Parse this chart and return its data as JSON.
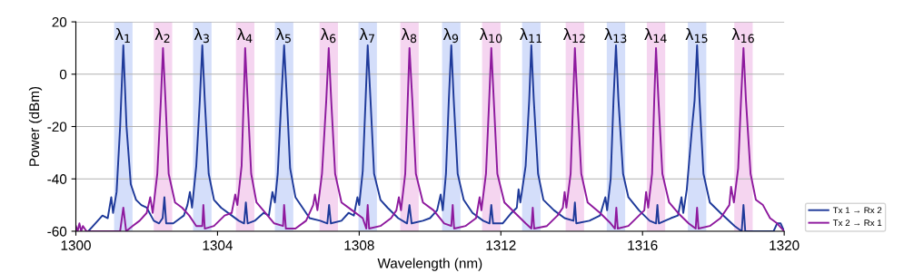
{
  "chart_data": {
    "type": "line",
    "xlabel": "Wavelength (nm)",
    "ylabel": "Power (dBm)",
    "xlim": [
      1300,
      1320
    ],
    "xticks": [
      1300,
      1304,
      1308,
      1312,
      1316,
      1320
    ],
    "ylim": [
      -60,
      20
    ],
    "yticks": [
      -60,
      -40,
      -20,
      0,
      20
    ],
    "grid": "y",
    "legend": "bottom right",
    "marker": "none",
    "line_style": "solid",
    "series": [
      {
        "name": "Tx 1 → Rx 2",
        "color": "#1f3a9a",
        "x": [
          1300.35,
          1300.55,
          1300.75,
          1300.9,
          1301.0,
          1301.05,
          1301.15,
          1301.25,
          1301.34,
          1301.43,
          1301.55,
          1301.7,
          1301.85,
          1302.0,
          1302.2,
          1302.35,
          1302.45,
          1302.5,
          1302.55,
          1302.75,
          1302.95,
          1303.05,
          1303.15,
          1303.22,
          1303.28,
          1303.4,
          1303.5,
          1303.57,
          1303.64,
          1303.75,
          1303.9,
          1304.1,
          1304.4,
          1304.6,
          1304.75,
          1304.8,
          1304.85,
          1305.05,
          1305.3,
          1305.45,
          1305.55,
          1305.62,
          1305.7,
          1305.8,
          1305.88,
          1305.96,
          1306.05,
          1306.2,
          1306.4,
          1306.6,
          1306.9,
          1307.1,
          1307.15,
          1307.2,
          1307.5,
          1307.7,
          1307.85,
          1307.95,
          1308.0,
          1308.1,
          1308.18,
          1308.24,
          1308.32,
          1308.42,
          1308.6,
          1308.8,
          1309.1,
          1309.35,
          1309.42,
          1309.48,
          1309.8,
          1310.0,
          1310.2,
          1310.3,
          1310.36,
          1310.45,
          1310.53,
          1310.6,
          1310.67,
          1310.78,
          1310.95,
          1311.2,
          1311.5,
          1311.68,
          1311.73,
          1311.78,
          1312.05,
          1312.3,
          1312.45,
          1312.5,
          1312.55,
          1312.7,
          1312.8,
          1312.86,
          1312.93,
          1313.05,
          1313.2,
          1313.5,
          1313.8,
          1314.05,
          1314.09,
          1314.13,
          1314.5,
          1314.8,
          1314.95,
          1315.0,
          1315.1,
          1315.18,
          1315.25,
          1315.32,
          1315.45,
          1315.6,
          1315.9,
          1316.2,
          1316.38,
          1316.42,
          1316.46,
          1316.8,
          1317.0,
          1317.1,
          1317.15,
          1317.25,
          1317.4,
          1317.47,
          1317.54,
          1317.61,
          1317.72,
          1317.9,
          1318.2,
          1318.6,
          1318.8,
          1318.85,
          1318.9,
          1319.7,
          1319.8,
          1319.9,
          1320.0
        ],
        "values": [
          -60,
          -57,
          -54,
          -55,
          -47,
          -53,
          -45,
          -20,
          11,
          -20,
          -42,
          -48,
          -50,
          -51,
          -56,
          -57,
          -55,
          -47,
          -57,
          -57,
          -55,
          -54,
          -50,
          -45,
          -51,
          -35,
          -10,
          11,
          -10,
          -38,
          -48,
          -51,
          -54,
          -56,
          -57,
          -49,
          -57,
          -56,
          -53,
          -54,
          -45,
          -49,
          -38,
          -10,
          11,
          -10,
          -36,
          -47,
          -51,
          -55,
          -56,
          -57,
          -50,
          -57,
          -56,
          -53,
          -54,
          -47,
          -50,
          -37,
          -10,
          11,
          -10,
          -38,
          -48,
          -51,
          -55,
          -57,
          -50,
          -57,
          -56,
          -55,
          -52,
          -46,
          -52,
          -38,
          -10,
          11,
          -10,
          -38,
          -48,
          -53,
          -56,
          -57,
          -50,
          -57,
          -57,
          -53,
          -51,
          -44,
          -49,
          -35,
          -10,
          11,
          -10,
          -38,
          -48,
          -52,
          -55,
          -56,
          -49,
          -57,
          -56,
          -54,
          -47,
          -52,
          -40,
          -10,
          11,
          -10,
          -38,
          -47,
          -52,
          -56,
          -57,
          -50,
          -57,
          -55,
          -54,
          -47,
          -53,
          -44,
          -20,
          -10,
          11,
          -10,
          -38,
          -49,
          -53,
          -58,
          -60,
          -50,
          -60,
          -60,
          -57,
          -57,
          -60
        ]
      },
      {
        "name": "Tx 2 → Rx 1",
        "color": "#8e1a9e",
        "x": [
          1300.0,
          1300.05,
          1300.1,
          1300.15,
          1300.2,
          1300.3,
          1301.1,
          1301.25,
          1301.34,
          1301.42,
          1301.6,
          1301.8,
          1302.0,
          1302.1,
          1302.17,
          1302.3,
          1302.4,
          1302.46,
          1302.53,
          1302.62,
          1302.8,
          1303.0,
          1303.2,
          1303.4,
          1303.57,
          1303.6,
          1303.64,
          1303.9,
          1304.2,
          1304.4,
          1304.5,
          1304.56,
          1304.68,
          1304.75,
          1304.78,
          1304.85,
          1304.95,
          1305.1,
          1305.35,
          1305.6,
          1305.85,
          1305.88,
          1305.93,
          1306.2,
          1306.5,
          1306.7,
          1306.75,
          1306.82,
          1306.95,
          1307.07,
          1307.14,
          1307.21,
          1307.32,
          1307.5,
          1307.8,
          1308.1,
          1308.2,
          1308.24,
          1308.28,
          1308.6,
          1308.9,
          1309.05,
          1309.12,
          1309.18,
          1309.3,
          1309.37,
          1309.42,
          1309.5,
          1309.6,
          1309.8,
          1310.1,
          1310.4,
          1310.6,
          1310.64,
          1310.68,
          1311.0,
          1311.3,
          1311.4,
          1311.45,
          1311.58,
          1311.67,
          1311.73,
          1311.8,
          1311.9,
          1312.1,
          1312.4,
          1312.7,
          1312.86,
          1312.9,
          1312.94,
          1313.3,
          1313.6,
          1313.75,
          1313.8,
          1313.85,
          1313.97,
          1314.04,
          1314.09,
          1314.16,
          1314.27,
          1314.45,
          1314.8,
          1315.1,
          1315.22,
          1315.26,
          1315.3,
          1315.6,
          1315.9,
          1316.05,
          1316.1,
          1316.16,
          1316.27,
          1316.33,
          1316.38,
          1316.45,
          1316.56,
          1316.75,
          1317.0,
          1317.3,
          1317.5,
          1317.54,
          1317.58,
          1317.9,
          1318.2,
          1318.45,
          1318.5,
          1318.58,
          1318.7,
          1318.78,
          1318.85,
          1318.92,
          1319.05,
          1319.2,
          1319.4,
          1319.6,
          1319.8,
          1320.0
        ],
        "values": [
          -58,
          -60,
          -57,
          -60,
          -58,
          -60,
          -60,
          -60,
          -51,
          -60,
          -58,
          -56,
          -53,
          -47,
          -53,
          -38,
          -10,
          10,
          -10,
          -38,
          -49,
          -51,
          -54,
          -58,
          -58,
          -50,
          -59,
          -58,
          -54,
          -53,
          -46,
          -50,
          -35,
          -5,
          10,
          -10,
          -38,
          -49,
          -53,
          -57,
          -58,
          -50,
          -59,
          -59,
          -56,
          -50,
          -46,
          -52,
          -38,
          -10,
          10,
          -10,
          -38,
          -49,
          -52,
          -55,
          -59,
          -50,
          -59,
          -58,
          -55,
          -52,
          -47,
          -52,
          -38,
          -10,
          10,
          -10,
          -38,
          -49,
          -52,
          -57,
          -58,
          -50,
          -59,
          -58,
          -55,
          -47,
          -52,
          -38,
          -10,
          10,
          -10,
          -38,
          -49,
          -53,
          -57,
          -59,
          -51,
          -59,
          -58,
          -54,
          -51,
          -45,
          -51,
          -38,
          -10,
          10,
          -10,
          -38,
          -49,
          -53,
          -57,
          -59,
          -51,
          -59,
          -58,
          -54,
          -52,
          -45,
          -51,
          -38,
          -10,
          10,
          -10,
          -38,
          -49,
          -53,
          -57,
          -59,
          -51,
          -59,
          -58,
          -55,
          -50,
          -43,
          -49,
          -36,
          -10,
          10,
          -10,
          -38,
          -48,
          -50,
          -55,
          -57,
          -60
        ]
      }
    ],
    "bands": [
      {
        "axis": "x",
        "from": 1301.08,
        "to": 1301.6,
        "label": "λ$_{1}$",
        "color": "#d4defa"
      },
      {
        "axis": "x",
        "from": 1302.2,
        "to": 1302.72,
        "label": "λ$_{2}$",
        "color": "#f5d5f0"
      },
      {
        "axis": "x",
        "from": 1303.31,
        "to": 1303.83,
        "label": "λ$_{3}$",
        "color": "#d4defa"
      },
      {
        "axis": "x",
        "from": 1304.52,
        "to": 1305.04,
        "label": "λ$_{4}$",
        "color": "#f5d5f0"
      },
      {
        "axis": "x",
        "from": 1305.62,
        "to": 1306.14,
        "label": "λ$_{5}$",
        "color": "#d4defa"
      },
      {
        "axis": "x",
        "from": 1306.88,
        "to": 1307.4,
        "label": "λ$_{6}$",
        "color": "#f5d5f0"
      },
      {
        "axis": "x",
        "from": 1307.98,
        "to": 1308.5,
        "label": "λ$_{7}$",
        "color": "#d4defa"
      },
      {
        "axis": "x",
        "from": 1309.16,
        "to": 1309.68,
        "label": "λ$_{8}$",
        "color": "#f5d5f0"
      },
      {
        "axis": "x",
        "from": 1310.34,
        "to": 1310.86,
        "label": "λ$_{9}$",
        "color": "#d4defa"
      },
      {
        "axis": "x",
        "from": 1311.47,
        "to": 1311.99,
        "label": "λ$_{10}$",
        "color": "#f5d5f0"
      },
      {
        "axis": "x",
        "from": 1312.6,
        "to": 1313.12,
        "label": "λ$_{11}$",
        "color": "#d4defa"
      },
      {
        "axis": "x",
        "from": 1313.83,
        "to": 1314.35,
        "label": "λ$_{12}$",
        "color": "#f5d5f0"
      },
      {
        "axis": "x",
        "from": 1314.99,
        "to": 1315.51,
        "label": "λ$_{13}$",
        "color": "#d4defa"
      },
      {
        "axis": "x",
        "from": 1316.12,
        "to": 1316.64,
        "label": "λ$_{14}$",
        "color": "#f5d5f0"
      },
      {
        "axis": "x",
        "from": 1317.28,
        "to": 1317.8,
        "label": "λ$_{15}$",
        "color": "#d4defa"
      },
      {
        "axis": "x",
        "from": 1318.59,
        "to": 1319.11,
        "label": "λ$_{16}$",
        "color": "#f5d5f0"
      }
    ]
  }
}
